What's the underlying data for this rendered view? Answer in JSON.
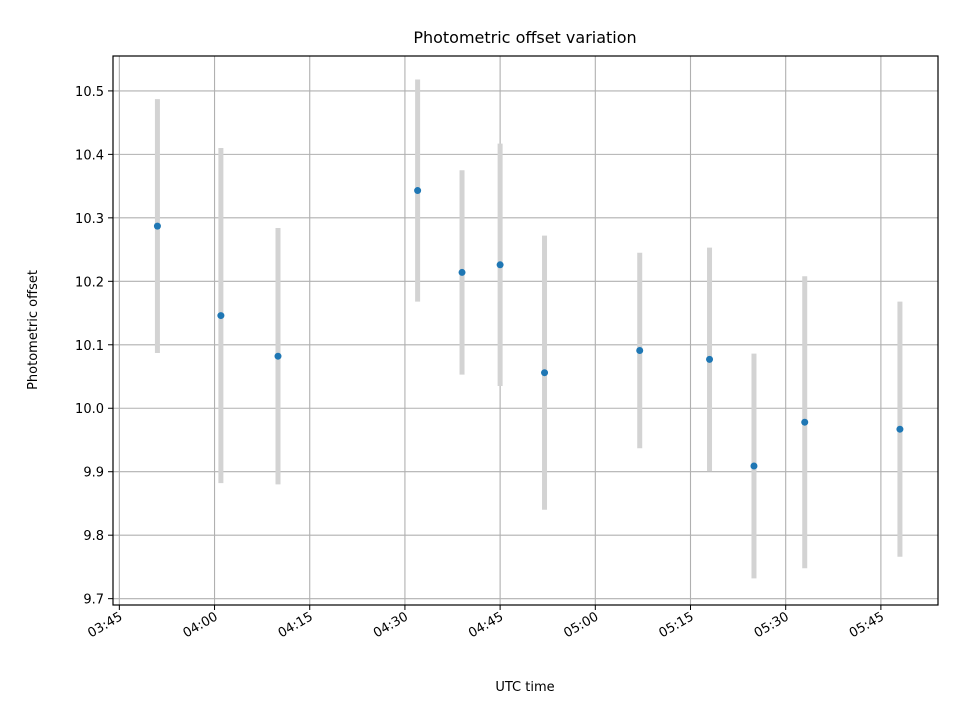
{
  "chart_data": {
    "type": "scatter",
    "title": "Photometric offset variation",
    "xlabel": "UTC time",
    "ylabel": "Photometric offset",
    "xlim": [
      "03:44",
      "05:54"
    ],
    "ylim": [
      9.69,
      10.555
    ],
    "grid": true,
    "x_ticks": [
      "03:45",
      "04:00",
      "04:15",
      "04:30",
      "04:45",
      "05:00",
      "05:15",
      "05:30",
      "05:45"
    ],
    "y_ticks": [
      9.7,
      9.8,
      9.9,
      10.0,
      10.1,
      10.2,
      10.3,
      10.4,
      10.5
    ],
    "y_tick_labels": [
      "9.7",
      "9.8",
      "9.9",
      "10.0",
      "10.1",
      "10.2",
      "10.3",
      "10.4",
      "10.5"
    ],
    "marker_color": "#1f77b4",
    "errorbar_color": "#d3d3d3",
    "points": [
      {
        "time": "03:51",
        "y": 10.287,
        "err": 0.2
      },
      {
        "time": "04:01",
        "y": 10.146,
        "err": 0.264
      },
      {
        "time": "04:10",
        "y": 10.082,
        "err": 0.202
      },
      {
        "time": "04:32",
        "y": 10.343,
        "err": 0.175
      },
      {
        "time": "04:39",
        "y": 10.214,
        "err": 0.161
      },
      {
        "time": "04:45",
        "y": 10.226,
        "err": 0.191
      },
      {
        "time": "04:52",
        "y": 10.056,
        "err": 0.216
      },
      {
        "time": "05:07",
        "y": 10.091,
        "err": 0.154
      },
      {
        "time": "05:18",
        "y": 10.077,
        "err": 0.176
      },
      {
        "time": "05:25",
        "y": 9.909,
        "err": 0.177
      },
      {
        "time": "05:33",
        "y": 9.978,
        "err": 0.23
      },
      {
        "time": "05:48",
        "y": 9.967,
        "err": 0.201
      }
    ]
  }
}
